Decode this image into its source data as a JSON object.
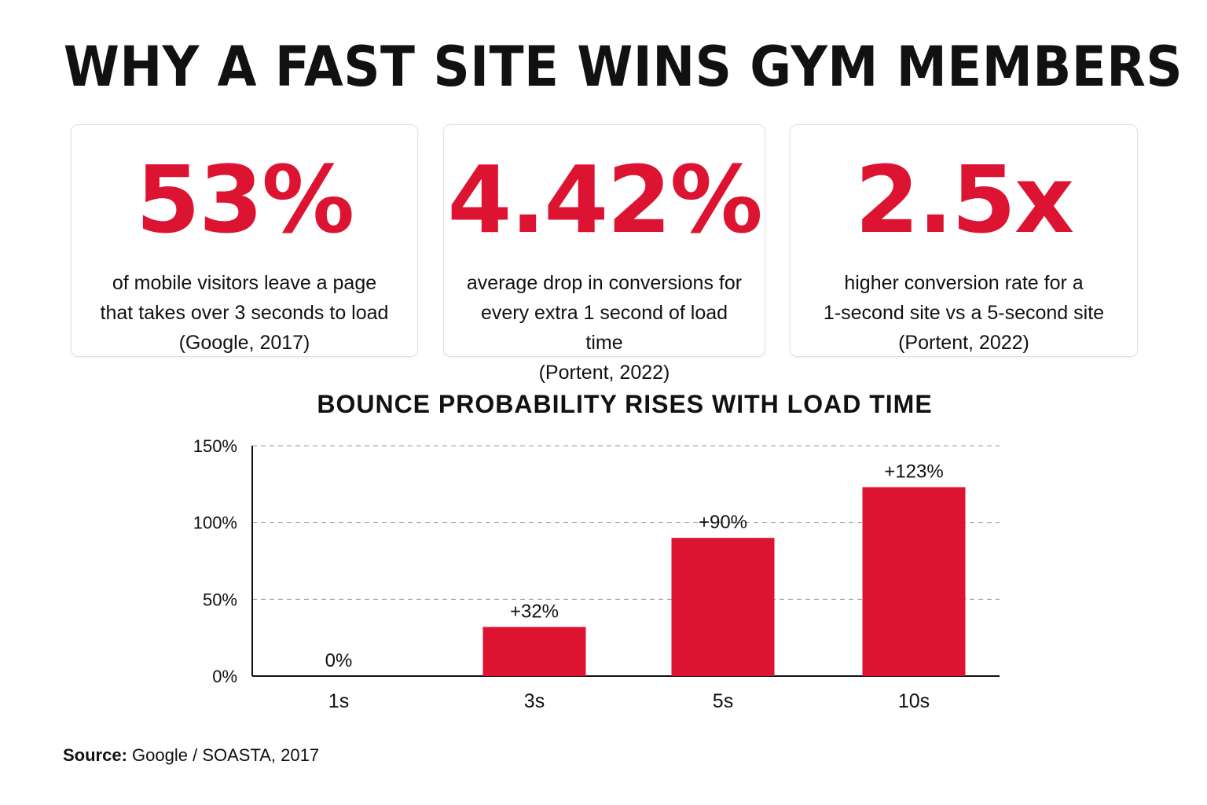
{
  "title": "WHY A FAST SITE WINS GYM MEMBERS",
  "stats": [
    {
      "value": "53%",
      "lines": [
        "of mobile visitors leave a page",
        "that takes over 3 seconds to load",
        "(Google, 2017)"
      ]
    },
    {
      "value": "4.42%",
      "lines": [
        "average drop in conversions for",
        "every extra 1 second of load time",
        "(Portent, 2022)"
      ]
    },
    {
      "value": "2.5x",
      "lines": [
        "higher conversion rate for a",
        "1-second site vs a 5-second site",
        "(Portent, 2022)"
      ]
    }
  ],
  "chart_data": {
    "type": "bar",
    "title": "BOUNCE PROBABILITY RISES WITH LOAD TIME",
    "xlabel": "",
    "ylabel": "",
    "categories": [
      "1s",
      "3s",
      "5s",
      "10s"
    ],
    "values": [
      0,
      32,
      90,
      123
    ],
    "data_labels": [
      "0%",
      "+32%",
      "+90%",
      "+123%"
    ],
    "ylim": [
      0,
      150
    ],
    "yticks": [
      0,
      50,
      100,
      150
    ],
    "ytick_labels": [
      "0%",
      "50%",
      "100%",
      "150%"
    ],
    "grid": true,
    "bar_color": "#dc1432"
  },
  "source": {
    "label": "Source:",
    "text": " Google / SOASTA, 2017"
  },
  "colors": {
    "accent": "#dc1432",
    "text": "#111111"
  }
}
